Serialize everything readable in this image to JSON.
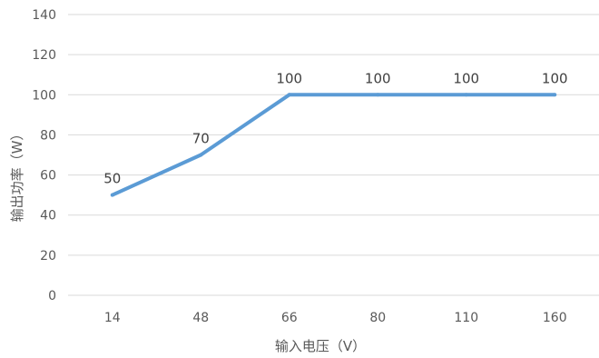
{
  "chart_data": {
    "type": "line",
    "categories": [
      "14",
      "48",
      "66",
      "80",
      "110",
      "160"
    ],
    "series": [
      {
        "values": [
          50,
          70,
          100,
          100,
          100,
          100
        ]
      }
    ],
    "data_labels": [
      "50",
      "70",
      "100",
      "100",
      "100",
      "100"
    ],
    "ylim": [
      0,
      140
    ],
    "yticks": [
      "0",
      "20",
      "40",
      "60",
      "80",
      "100",
      "120",
      "140"
    ],
    "xlabel": "输入电压（V）",
    "ylabel": "输出功率（W）",
    "title": "",
    "grid": true,
    "line_color": "#5b9bd5",
    "grid_color": "#d9d9d9"
  }
}
